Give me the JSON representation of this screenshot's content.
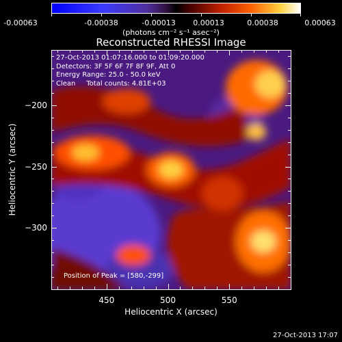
{
  "colorbar": {
    "ticks": [
      "-0.00063",
      "-0.00038",
      "-0.00013",
      "0.00013",
      "0.00038",
      "0.00063"
    ],
    "unit": "(photons cm⁻² s⁻¹ asec⁻²)",
    "min": -0.00063,
    "max": 0.00063
  },
  "chart_data": {
    "type": "heatmap",
    "title": "Reconstructed RHESSI Image",
    "xlabel": "Heliocentric X (arcsec)",
    "ylabel": "Heliocentric Y (arcsec)",
    "xlim": [
      405,
      600
    ],
    "ylim": [
      -350,
      -155
    ],
    "x_ticks": [
      450,
      500,
      550
    ],
    "y_ticks": [
      -200,
      -250,
      -300
    ],
    "peak_position": [
      580,
      -299
    ]
  },
  "overlay": {
    "line1": "27-Oct-2013 01:07:16.000 to 01:09:20.000",
    "line2": "Detectors: 3F 5F 6F 7F 8F 9F, Att 0",
    "line3": "Energy Range: 25.0 - 50.0 keV",
    "line4": "Clean     Total counts: 4.81E+03",
    "peak": "Position of Peak = [580,-299]"
  },
  "footer": {
    "timestamp": "27-Oct-2013 17:07"
  }
}
